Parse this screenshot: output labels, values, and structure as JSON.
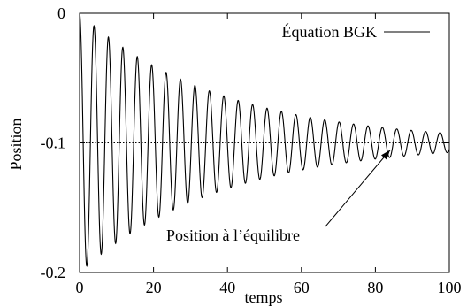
{
  "chart_data": {
    "type": "line",
    "title": "",
    "xlabel": "temps",
    "ylabel": "Position",
    "xlim": [
      0,
      100
    ],
    "ylim": [
      -0.2,
      0
    ],
    "xticks": [
      0,
      20,
      40,
      60,
      80,
      100
    ],
    "xtick_labels": [
      "0",
      "20",
      "40",
      "60",
      "80",
      "100"
    ],
    "yticks": [
      -0.2,
      -0.1,
      0
    ],
    "ytick_labels": [
      "-0.2",
      "-0.1",
      "0"
    ],
    "grid": false,
    "legend_position": "top-right",
    "series": [
      {
        "name": "Équation BGK",
        "color": "#000000",
        "model": {
          "equilibrium": -0.1,
          "start_value": 0,
          "period": 3.9,
          "initial_amplitude": 0.1,
          "decay_per_unit_time": 0.026,
          "x_start": 0,
          "x_end": 100
        }
      }
    ],
    "reference_lines": [
      {
        "y": -0.1,
        "style": "dotted",
        "color": "#000000"
      }
    ],
    "annotations": [
      {
        "text": "Position à l’équilibre",
        "arrow_to": {
          "x": 84,
          "y": -0.1
        }
      }
    ]
  }
}
